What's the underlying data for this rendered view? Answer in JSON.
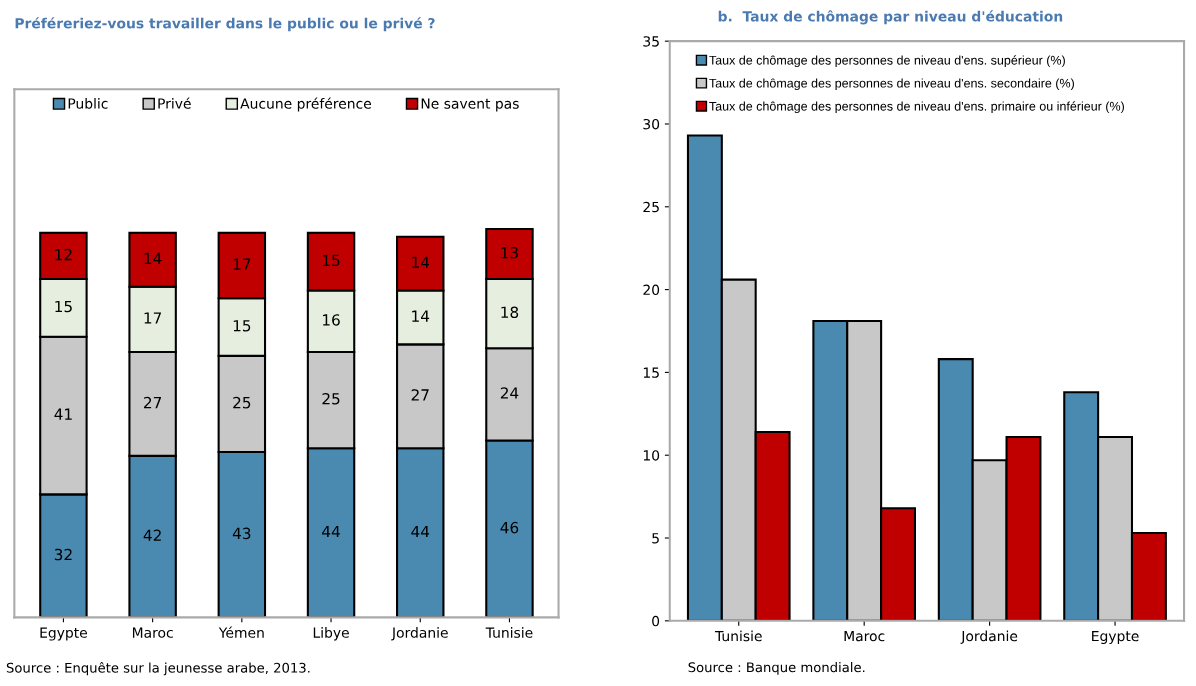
{
  "chart_data": [
    {
      "type": "bar",
      "title": "Préféreriez-vous travailler dans le public ou le privé ?",
      "stacked": true,
      "data_labels": true,
      "legend": "top",
      "grid": false,
      "tick_labels": "x",
      "categories": [
        "Egypte",
        "Maroc",
        "Yémen",
        "Libye",
        "Jordanie",
        "Tunisie"
      ],
      "series": [
        {
          "name": "Public",
          "color": "#4a8ab0",
          "values": [
            32,
            42,
            43,
            44,
            44,
            46
          ]
        },
        {
          "name": "Privé",
          "color": "#c8c8c8",
          "values": [
            41,
            27,
            25,
            25,
            27,
            24
          ]
        },
        {
          "name": "Aucune préférence",
          "color": "#e6efdf",
          "values": [
            15,
            17,
            15,
            16,
            14,
            18
          ]
        },
        {
          "name": "Ne savent pas",
          "color": "#c00000",
          "values": [
            12,
            14,
            17,
            15,
            14,
            13
          ]
        }
      ],
      "annotations": [
        "Source : Enquête sur la jeunesse arabe, 2013."
      ]
    },
    {
      "type": "bar",
      "title": "b.  Taux de chômage par niveau d'éducation",
      "legend": "top left",
      "grid": false,
      "categories": [
        "Tunisie",
        "Maroc",
        "Jordanie",
        "Egypte"
      ],
      "ylim": [
        0,
        35
      ],
      "yticks": [
        0,
        5,
        10,
        15,
        20,
        25,
        30,
        35
      ],
      "series": [
        {
          "name": "Taux de chômage des personnes de niveau d'ens. supérieur (%)",
          "color": "#4a8ab0",
          "values": [
            29.3,
            18.1,
            15.8,
            13.8
          ]
        },
        {
          "name": "Taux de chômage des personnes de niveau d'ens. secondaire (%)",
          "color": "#c8c8c8",
          "values": [
            20.6,
            18.1,
            9.7,
            11.1
          ]
        },
        {
          "name": "Taux de chômage des personnes de niveau d'ens. primaire ou inférieur (%)",
          "color": "#c00000",
          "values": [
            11.4,
            6.8,
            11.1,
            5.3
          ]
        }
      ],
      "annotations": [
        "Source : Banque mondiale."
      ]
    }
  ]
}
